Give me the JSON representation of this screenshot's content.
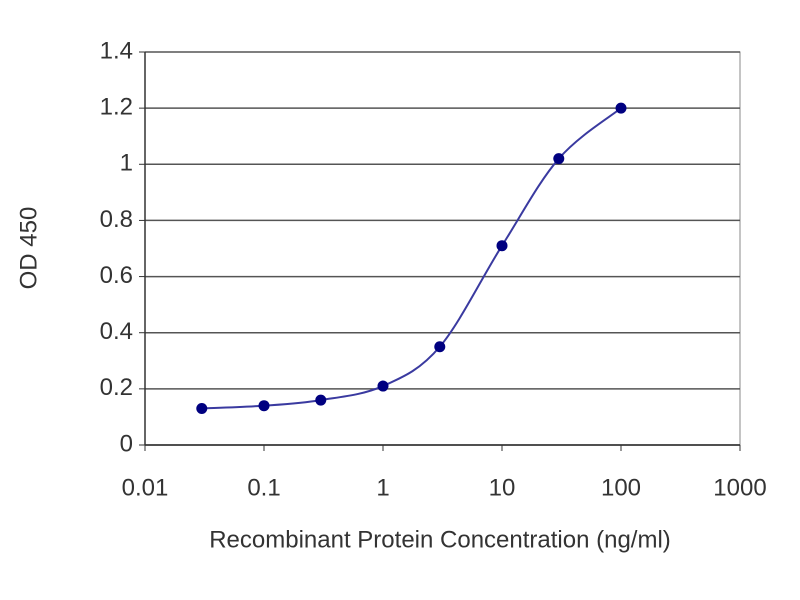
{
  "chart_data": {
    "type": "line",
    "x_label": "Recombinant Protein Concentration (ng/ml)",
    "y_label": "OD 450",
    "x": [
      0.03,
      0.1,
      0.3,
      1,
      3,
      10,
      30,
      100
    ],
    "series": [
      {
        "name": "OD 450",
        "color": "#000080",
        "line_color": "#3a3aa0",
        "values": [
          0.13,
          0.14,
          0.16,
          0.21,
          0.35,
          0.71,
          1.02,
          1.2
        ]
      }
    ],
    "x_log": true,
    "xlim": [
      0.01,
      1000
    ],
    "xticks": [
      0.01,
      0.1,
      1,
      10,
      100,
      1000
    ],
    "ylim": [
      0,
      1.4
    ],
    "yticks": [
      0,
      0.2,
      0.4,
      0.6,
      0.8,
      1,
      1.2,
      1.4
    ],
    "grid": true
  }
}
